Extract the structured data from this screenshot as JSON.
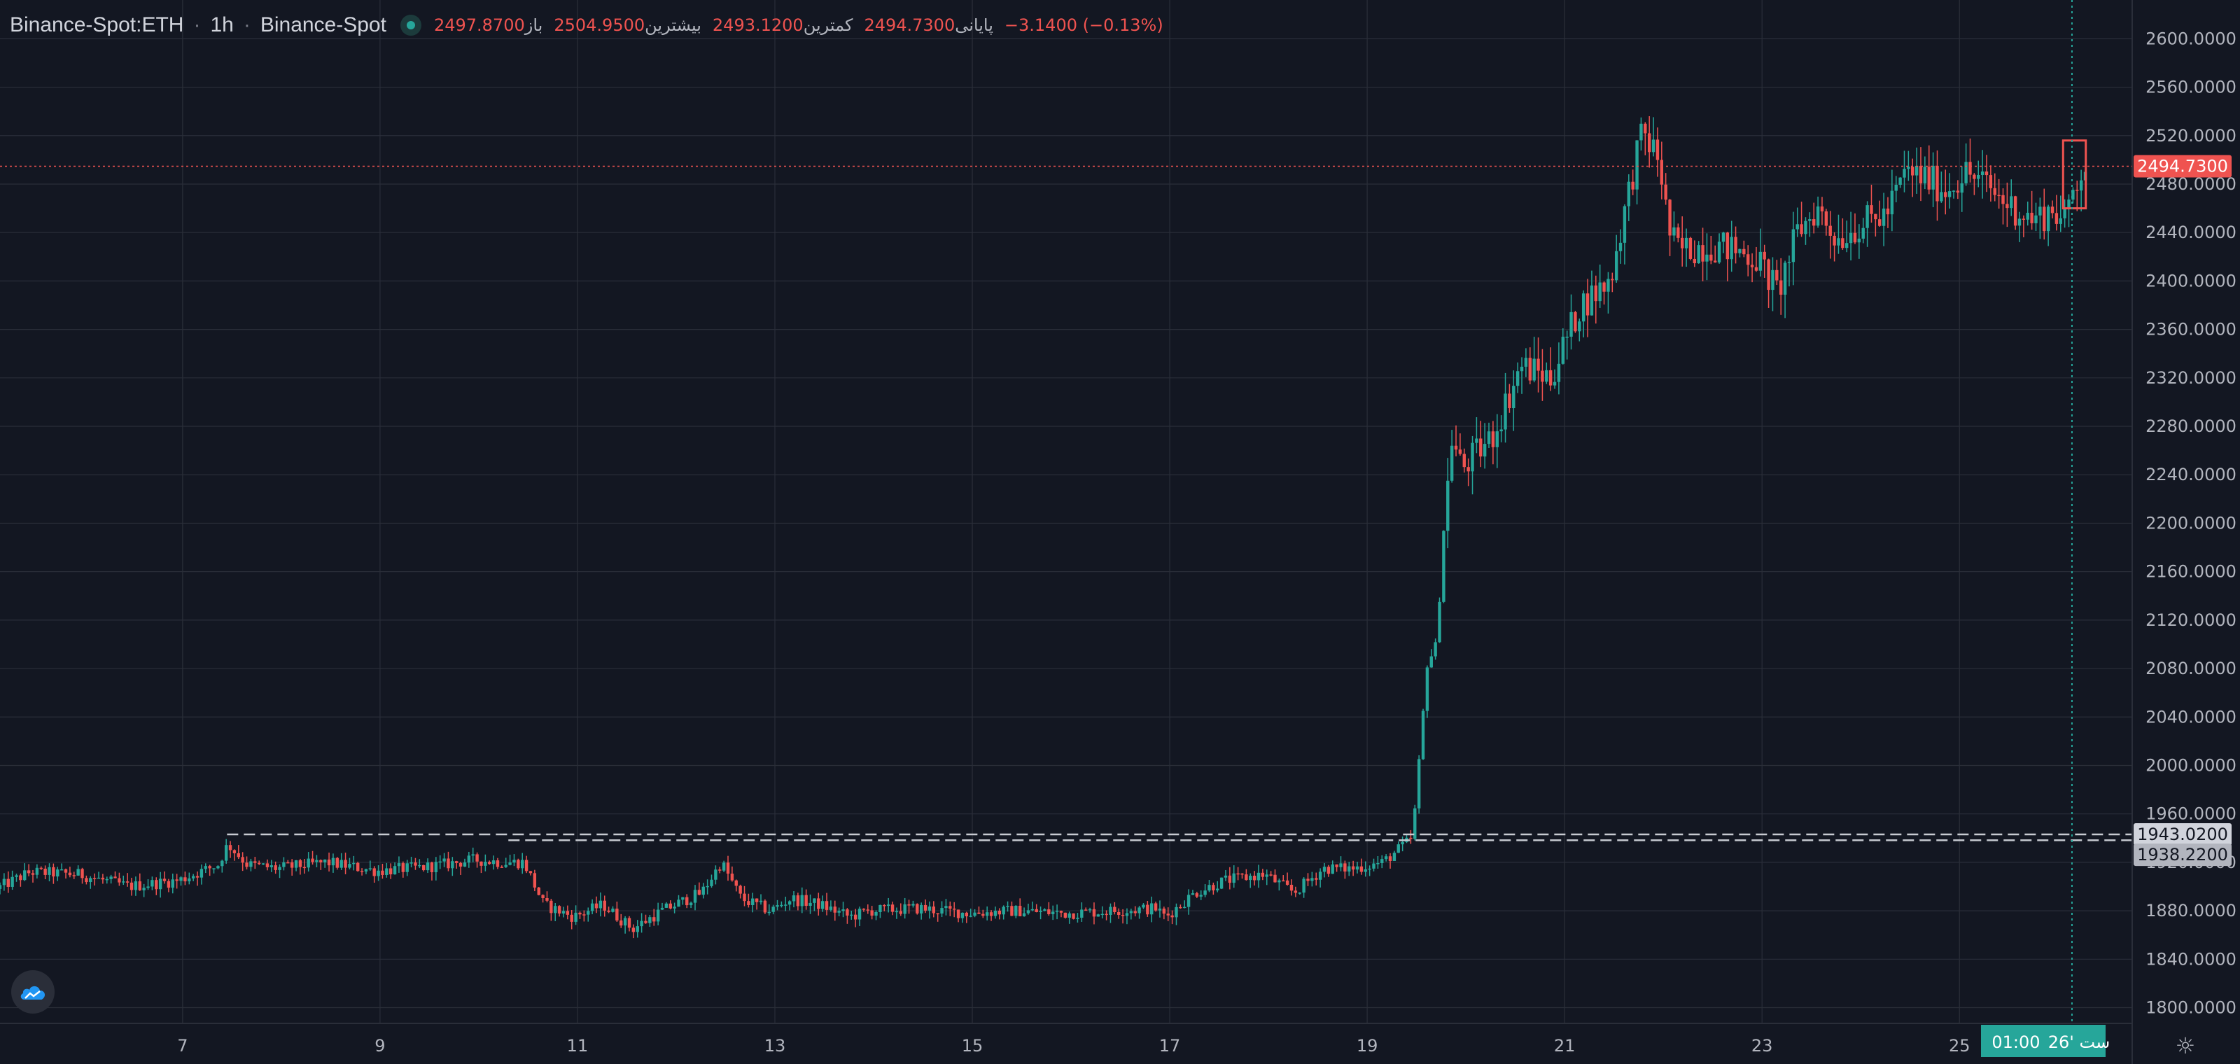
{
  "header": {
    "symbol": "Binance-Spot:ETH",
    "interval": "1h",
    "exchange": "Binance-Spot",
    "open_label": "باز",
    "open_value": "2497.8700",
    "high_label": "بیشترین",
    "high_value": "2504.9500",
    "low_label": "کمترین",
    "low_value": "2493.1200",
    "close_label": "پایانی",
    "close_value": "2494.7300",
    "change_value": "−3.1400 (−0.13%)"
  },
  "price_tags": {
    "last_price": "2494.7300",
    "line_1": "1943.0200",
    "line_2": "1938.2200"
  },
  "time_tags": {
    "crosshair_time": "01:00",
    "crosshair_date": "26' ست"
  },
  "colors": {
    "background": "#131722",
    "up": "#26a69a",
    "down": "#ef5350",
    "grid": "#2a2e39",
    "text": "#b2b5be"
  },
  "icons": {
    "logo": "tradingview-cloud-logo",
    "settings": "gear-icon"
  },
  "chart_data": {
    "type": "candlestick",
    "x_tick_labels": [
      "7",
      "9",
      "11",
      "13",
      "15",
      "17",
      "19",
      "21",
      "23",
      "25"
    ],
    "x_tick_days": [
      7,
      9,
      11,
      13,
      15,
      17,
      19,
      21,
      23,
      25
    ],
    "x_range_days": [
      5.15,
      26.75
    ],
    "y_tick_labels": [
      "2600.0000",
      "2560.0000",
      "2520.0000",
      "2480.0000",
      "2440.0000",
      "2400.0000",
      "2360.0000",
      "2320.0000",
      "2280.0000",
      "2240.0000",
      "2200.0000",
      "2160.0000",
      "2120.0000",
      "2080.0000",
      "2040.0000",
      "2000.0000",
      "1960.0000",
      "1920.0000",
      "1880.0000",
      "1840.0000",
      "1800.0000"
    ],
    "y_ticks": [
      2600,
      2560,
      2520,
      2480,
      2440,
      2400,
      2360,
      2320,
      2280,
      2240,
      2200,
      2160,
      2120,
      2080,
      2040,
      2000,
      1960,
      1920,
      1880,
      1840,
      1800
    ],
    "y_range": [
      1787,
      2632
    ],
    "last_price": 2494.73,
    "horizontal_lines": [
      1943.02,
      1938.22
    ],
    "crosshair_day": 26.14,
    "highlight_box": {
      "day_start": 26.05,
      "day_end": 26.28,
      "low": 2460,
      "high": 2516
    },
    "price_path_days": [
      5.15,
      5.5,
      6.0,
      6.5,
      7.0,
      7.4,
      7.5,
      7.7,
      8.0,
      8.5,
      9.0,
      9.5,
      10.0,
      10.3,
      10.5,
      10.7,
      11.0,
      11.3,
      11.6,
      11.9,
      12.3,
      12.5,
      12.7,
      13.0,
      13.2,
      13.5,
      13.8,
      14.0,
      14.5,
      15.0,
      15.5,
      16.0,
      16.5,
      16.9,
      17.0,
      17.3,
      17.6,
      18.0,
      18.3,
      18.6,
      18.9,
      19.2,
      19.5,
      19.55,
      19.65,
      19.75,
      19.8,
      19.9,
      20.0,
      20.3,
      20.6,
      20.9,
      21.2,
      21.5,
      21.8,
      21.85,
      22.0,
      22.1,
      22.2,
      22.5,
      22.8,
      23.0,
      23.2,
      23.4,
      23.6,
      23.8,
      24.0,
      24.3,
      24.5,
      24.7,
      24.9,
      25.1,
      25.3,
      25.5,
      25.8,
      26.0,
      26.1,
      26.2,
      26.3
    ],
    "price_path_values": [
      1898,
      1912,
      1910,
      1900,
      1905,
      1918,
      1935,
      1918,
      1915,
      1920,
      1913,
      1916,
      1922,
      1920,
      1920,
      1885,
      1875,
      1885,
      1865,
      1880,
      1895,
      1920,
      1890,
      1880,
      1890,
      1885,
      1875,
      1880,
      1882,
      1878,
      1880,
      1878,
      1880,
      1882,
      1875,
      1895,
      1905,
      1910,
      1895,
      1915,
      1915,
      1920,
      1940,
      1985,
      2085,
      2100,
      2180,
      2270,
      2245,
      2270,
      2330,
      2320,
      2380,
      2400,
      2515,
      2520,
      2500,
      2440,
      2425,
      2430,
      2425,
      2418,
      2390,
      2440,
      2460,
      2435,
      2445,
      2455,
      2490,
      2485,
      2475,
      2490,
      2480,
      2465,
      2450,
      2460,
      2445,
      2480,
      2495
    ]
  }
}
